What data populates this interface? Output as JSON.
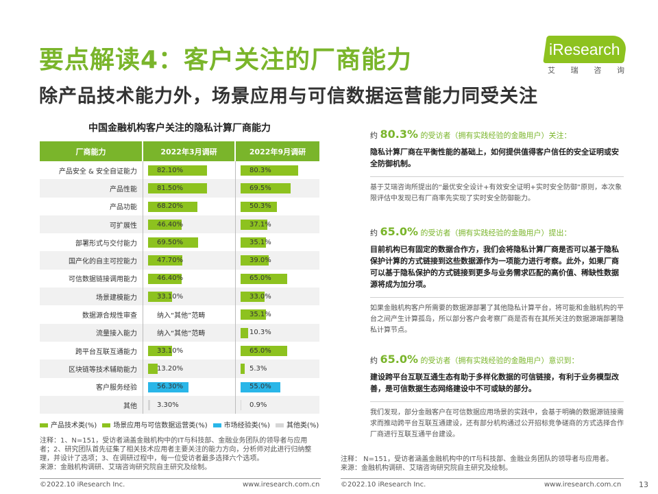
{
  "header": {
    "title": "要点解读4：客户关注的厂商能力",
    "subtitle": "除产品技术能力外，场景应用与可信数据运营能力同受关注"
  },
  "logo": {
    "text": "iResearch",
    "sub": [
      "艾",
      "瑞",
      "咨",
      "询"
    ]
  },
  "chart_data": {
    "type": "table",
    "title": "中国金融机构客户关注的隐私计算厂商能力",
    "columns": [
      "厂商能力",
      "2022年3月调研",
      "2022年9月调研"
    ],
    "rows": [
      {
        "label": "产品安全 & 安全自证能力",
        "march": 82.1,
        "march_text": "82.10%",
        "sept": 80.3,
        "sept_text": "80.3%",
        "category": "tech"
      },
      {
        "label": "产品性能",
        "march": 81.5,
        "march_text": "81.50%",
        "sept": 69.5,
        "sept_text": "69.5%",
        "category": "tech"
      },
      {
        "label": "产品功能",
        "march": 68.2,
        "march_text": "68.20%",
        "sept": 50.3,
        "sept_text": "50.3%",
        "category": "tech"
      },
      {
        "label": "可扩展性",
        "march": 46.4,
        "march_text": "46.40%",
        "sept": 37.1,
        "sept_text": "37.1%",
        "category": "tech"
      },
      {
        "label": "部署形式与交付能力",
        "march": 69.5,
        "march_text": "69.50%",
        "sept": 35.1,
        "sept_text": "35.1%",
        "category": "tech"
      },
      {
        "label": "国产化的自主可控能力",
        "march": 47.7,
        "march_text": "47.70%",
        "sept": 39.0,
        "sept_text": "39.0%",
        "category": "tech"
      },
      {
        "label": "可信数据链接调用能力",
        "march": 46.4,
        "march_text": "46.40%",
        "sept": 65.0,
        "sept_text": "65.0%",
        "category": "scene"
      },
      {
        "label": "场景建模能力",
        "march": 33.1,
        "march_text": "33.10%",
        "sept": 33.0,
        "sept_text": "33.0%",
        "category": "scene"
      },
      {
        "label": "数据源合规性审查",
        "march": null,
        "march_text": "纳入“其他”范畴",
        "sept": 35.1,
        "sept_text": "35.1%",
        "category": "scene"
      },
      {
        "label": "流量接入能力",
        "march": null,
        "march_text": "纳入“其他”范畴",
        "sept": 10.3,
        "sept_text": "10.3%",
        "category": "scene"
      },
      {
        "label": "跨平台互联互通能力",
        "march": 33.1,
        "march_text": "33.10%",
        "sept": 65.0,
        "sept_text": "65.0%",
        "category": "scene"
      },
      {
        "label": "区块链等技术辅助能力",
        "march": 13.2,
        "march_text": "13.20%",
        "sept": 5.3,
        "sept_text": "5.3%",
        "category": "scene"
      },
      {
        "label": "客户服务经验",
        "march": 56.3,
        "march_text": "56.30%",
        "sept": 55.0,
        "sept_text": "55.0%",
        "category": "market"
      },
      {
        "label": "其他",
        "march": 3.3,
        "march_text": "3.30%",
        "sept": 0.9,
        "sept_text": "0.9%",
        "category": "other"
      }
    ],
    "legend": [
      {
        "key": "tech",
        "name": "产品技术类(%)",
        "color": "#8dc21f"
      },
      {
        "key": "scene",
        "name": "场景应用与可信数据运营类(%)",
        "color": "#8dc21f"
      },
      {
        "key": "market",
        "name": "市场经验类(%)",
        "color": "#29b6e8"
      },
      {
        "key": "other",
        "name": "其他类(%)",
        "color": "#d6d6d6"
      }
    ]
  },
  "notes": {
    "left": "注释：1、N=151，受访者涵盖金融机构中的IT与科技部、金融业务团队的领导者与应用者；2、研究团队首先征集了相关技术应用者主要关注的能力方向，分析师对此进行归纳整理，并设计了选项；3、在调研过程中，每一位受访者最多选择六个选项。",
    "left_source": "来源：金融机构调研、艾瑞咨询研究院自主研究及绘制。",
    "right": "注释： N=151，受访者涵盖金融机构中的IT与科技部、金融业务团队的领导者与应用者。",
    "right_source": "来源：金融机构调研、艾瑞咨询研究院自主研究及绘制。"
  },
  "findings": [
    {
      "prefix": "约",
      "pct": "80.3%",
      "label": "的受访者（拥有实践经验的金融用户）关注：",
      "bold": "隐私计算厂商在平衡性能的基础上，如何提供值得客户信任的安全证明或安全防御机制。",
      "plain": "基于艾瑞咨询所提出的“最优安全设计+有效安全证明+实时安全防御”原则，本次象限评估中发现已有厂商率先实现了实时安全防御能力。"
    },
    {
      "prefix": "约",
      "pct": "65.0%",
      "label": "的受访者（拥有实践经验的金融用户）提出：",
      "bold": "目前机构已有固定的数据合作方，我们会将隐私计算厂商是否可以基于隐私保护计算的方式链接到这些数据源作为一项能力进行考察。此外，如果厂商可以基于隐私保护的方式链接到更多与业务需求匹配的高价值、稀缺性数据源将成为加分项。",
      "plain": "如果金融机构客户所需要的数据源部署了其他隐私计算平台，将可能和金融机构的平台之间产生计算孤岛，所以部分客户会考察厂商是否有在其所关注的数据源端部署隐私计算节点。"
    },
    {
      "prefix": "约",
      "pct": "65.0%",
      "label": "的受访者（拥有实践经验的金融用户）意识到：",
      "bold": "建设跨平台互联互通生态有助于多样化数据的可信链接，有利于业务模型改善，是可信数据生态网络建设中不可或缺的部分。",
      "plain": "我们发现，部分金融客户在可信数据应用场景的实践中，会基于明确的数据源链接需求而推动跨平台互联互通建设，还有部分机构通过公开招标竞争磋商的方式选择合作厂商进行互联互通平台建设。"
    }
  ],
  "footer": {
    "copyright": "©2022.10 iResearch Inc.",
    "url": "www.iresearch.com.cn",
    "page": "13"
  }
}
